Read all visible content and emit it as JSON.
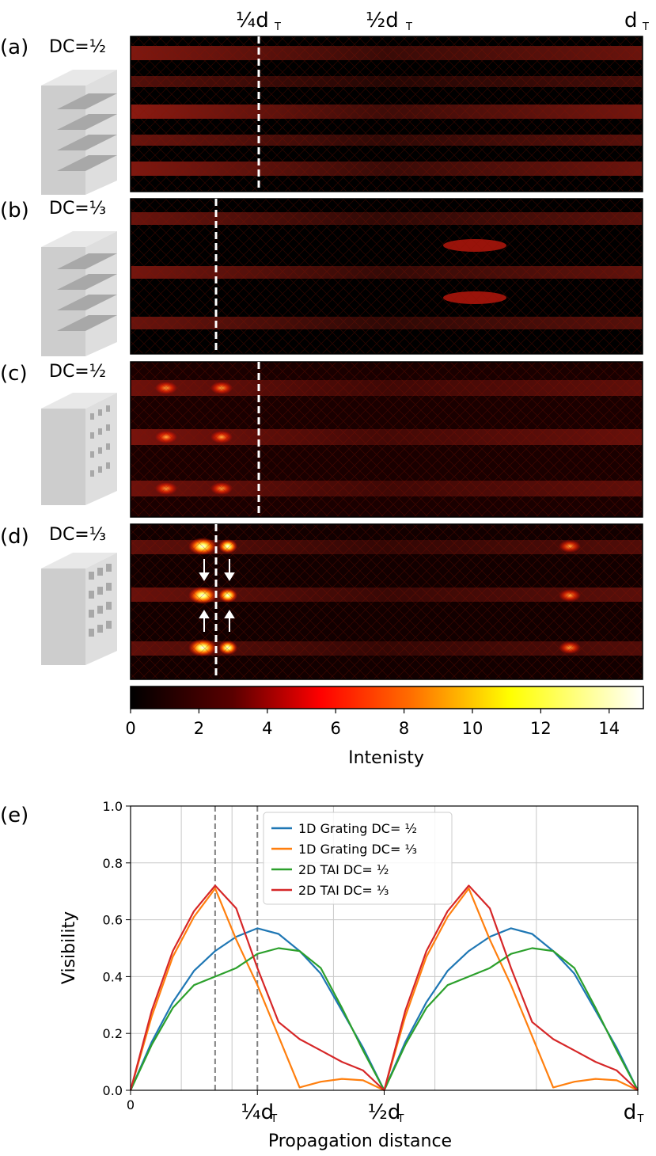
{
  "top_labels": {
    "quarter": "¼d",
    "half": "½d",
    "full": "d",
    "subscript": "T"
  },
  "panels": [
    {
      "letter": "(a)",
      "dc_label": "DC=½",
      "structure": "1D lamellar grating",
      "dashed_line_at_fraction_of_dT": 0.25
    },
    {
      "letter": "(b)",
      "dc_label": "DC=⅓",
      "structure": "1D lamellar grating",
      "dashed_line_at_fraction_of_dT": 0.1667
    },
    {
      "letter": "(c)",
      "dc_label": "DC=½",
      "structure": "2D hole array",
      "dashed_line_at_fraction_of_dT": 0.25
    },
    {
      "letter": "(d)",
      "dc_label": "DC=⅓",
      "structure": "2D hole array",
      "dashed_line_at_fraction_of_dT": 0.1667
    }
  ],
  "colorbar": {
    "label": "Intenisty",
    "min": 0,
    "max": 15,
    "ticks": [
      "0",
      "2",
      "4",
      "6",
      "8",
      "10",
      "12",
      "14"
    ],
    "colormap": "hot"
  },
  "chart_data": {
    "type": "line",
    "panel_letter": "(e)",
    "xlabel": "Propagation distance",
    "ylabel": "Visibility",
    "xlim": [
      0,
      1
    ],
    "ylim": [
      0,
      1.0
    ],
    "x_unit": "d_T",
    "x_tick_labels": [
      "0",
      "¼d",
      "½d",
      "d"
    ],
    "x_tick_subscript": "T",
    "y_tick_labels": [
      "0.0",
      "0.2",
      "0.4",
      "0.6",
      "0.8",
      "1.0"
    ],
    "grid": true,
    "legend_position": "top-center",
    "vertical_dashed_lines_at": [
      0.1667,
      0.25
    ],
    "x": [
      0,
      0.0417,
      0.0833,
      0.125,
      0.1667,
      0.2083,
      0.25,
      0.2917,
      0.3333,
      0.375,
      0.4167,
      0.4583,
      0.5,
      0.5417,
      0.5833,
      0.625,
      0.6667,
      0.7083,
      0.75,
      0.7917,
      0.8333,
      0.875,
      0.9167,
      0.9583,
      1.0
    ],
    "series": [
      {
        "name": "1D Grating DC= ½",
        "color": "#1f77b4",
        "values": [
          0,
          0.17,
          0.31,
          0.42,
          0.49,
          0.54,
          0.57,
          0.55,
          0.49,
          0.41,
          0.28,
          0.15,
          0,
          0.17,
          0.31,
          0.42,
          0.49,
          0.54,
          0.57,
          0.55,
          0.49,
          0.41,
          0.28,
          0.15,
          0
        ]
      },
      {
        "name": "1D Grating DC= ⅓",
        "color": "#ff7f0e",
        "values": [
          0,
          0.26,
          0.47,
          0.61,
          0.71,
          0.53,
          0.37,
          0.19,
          0.01,
          0.03,
          0.04,
          0.035,
          0,
          0.26,
          0.47,
          0.61,
          0.71,
          0.53,
          0.37,
          0.19,
          0.01,
          0.03,
          0.04,
          0.035,
          0
        ]
      },
      {
        "name": "2D TAI DC= ½",
        "color": "#2ca02c",
        "values": [
          0,
          0.16,
          0.29,
          0.37,
          0.4,
          0.43,
          0.48,
          0.5,
          0.49,
          0.43,
          0.29,
          0.14,
          0,
          0.16,
          0.29,
          0.37,
          0.4,
          0.43,
          0.48,
          0.5,
          0.49,
          0.43,
          0.29,
          0.14,
          0
        ]
      },
      {
        "name": "2D TAI DC= ⅓",
        "color": "#d62728",
        "values": [
          0,
          0.28,
          0.49,
          0.63,
          0.72,
          0.64,
          0.43,
          0.24,
          0.18,
          0.14,
          0.1,
          0.07,
          0,
          0.28,
          0.49,
          0.63,
          0.72,
          0.64,
          0.43,
          0.24,
          0.18,
          0.14,
          0.1,
          0.07,
          0
        ]
      }
    ]
  }
}
